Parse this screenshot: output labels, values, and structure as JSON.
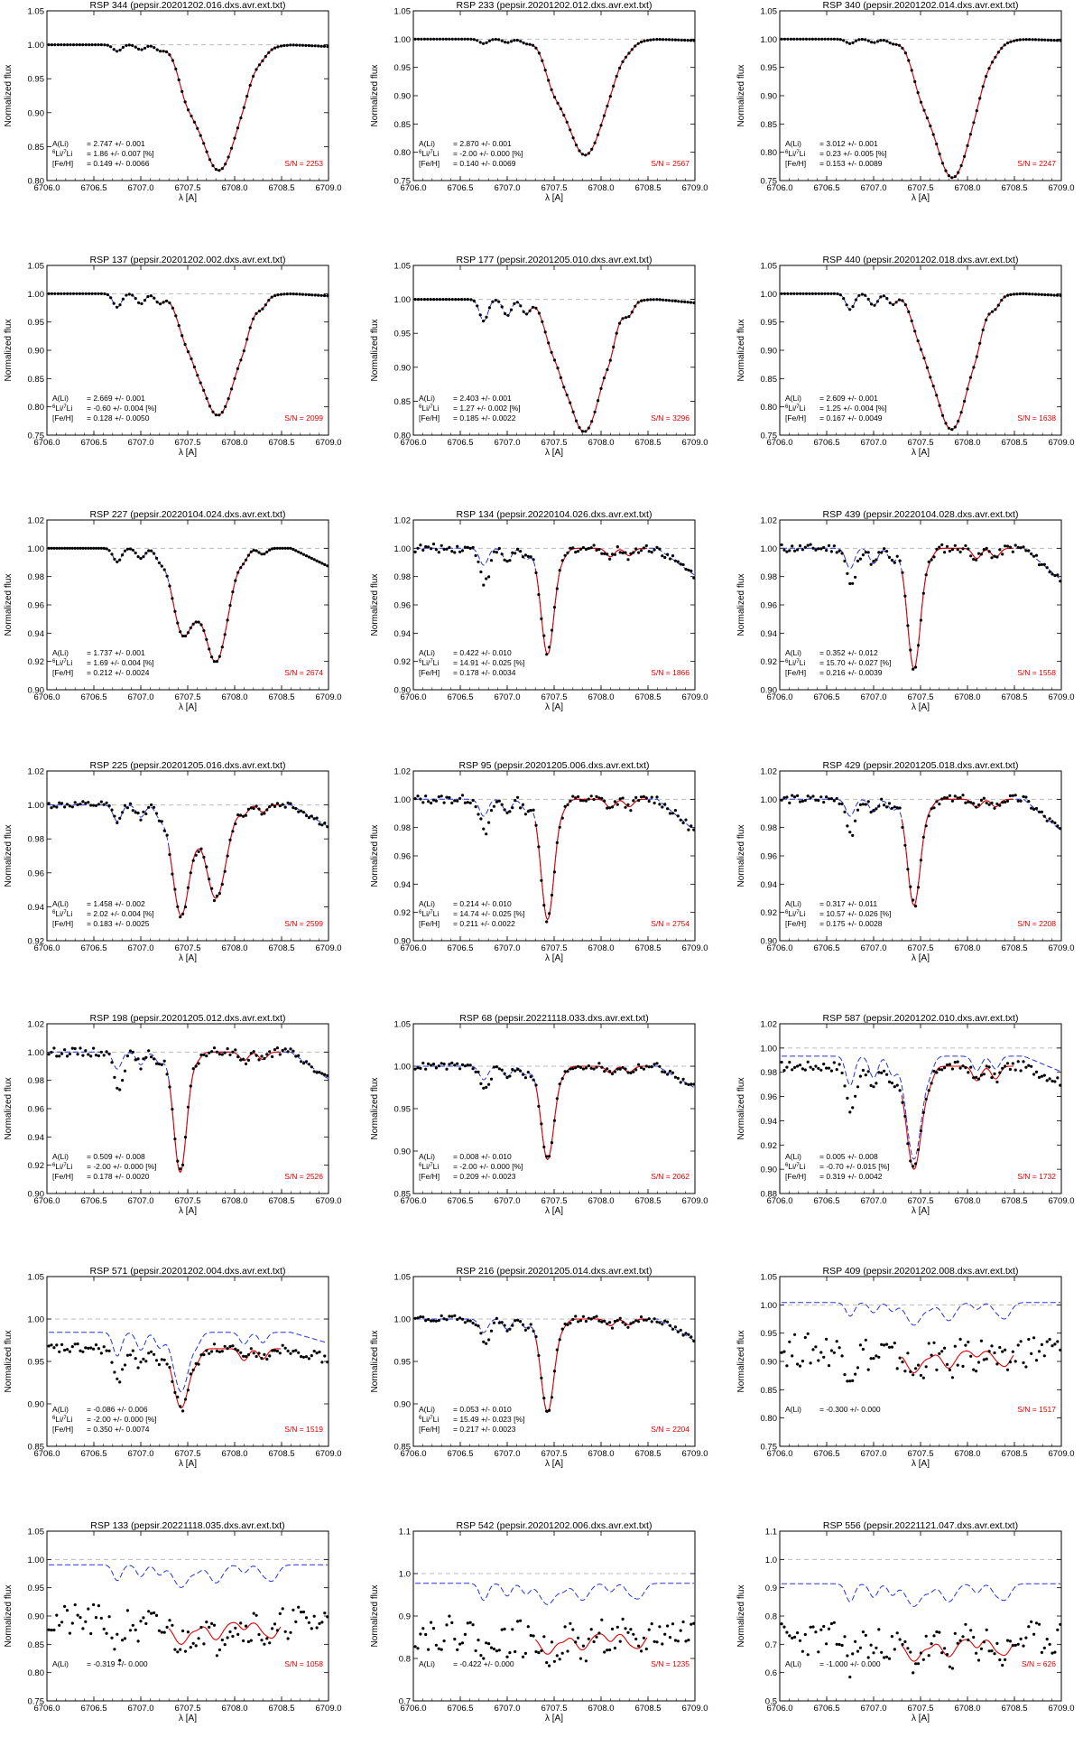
{
  "common": {
    "ylabel": "Normalized flux",
    "xlabel": "λ [A]",
    "xlim": [
      6706.0,
      6709.0
    ],
    "xticks": [
      6706.0,
      6706.5,
      6707.0,
      6707.5,
      6708.0,
      6708.5,
      6709.0
    ],
    "xtick_labels": [
      "6706.0",
      "6706.5",
      "6707.0",
      "6707.5",
      "6708.0",
      "6708.5",
      "6709.0"
    ],
    "colors": {
      "observed": "#000000",
      "fit": "#e00000",
      "synthetic": "#2233dd",
      "continuum": "#bbbbbb",
      "sn_text": "#e00000"
    },
    "label_alim": "A(Li)",
    "label_iso_sup": "6",
    "label_iso_mid": "Li/",
    "label_iso_sup2": "7",
    "label_iso_end": "Li",
    "label_feh": "[Fe/H]",
    "sn_prefix": "S/N ="
  },
  "chart_data": [
    {
      "type": "line",
      "title": "RSP 344 (pepsir.20201202.016.dxs.avr.ext.txt)",
      "ylim": [
        0.8,
        1.05
      ],
      "yticks": [
        0.8,
        0.85,
        0.9,
        0.95,
        1.0,
        1.05
      ],
      "ytick_labels": [
        "0.80",
        "0.85",
        "0.90",
        "0.95",
        "1.00",
        "1.05"
      ],
      "ALi": "= 2.747 +/- 0.001",
      "iso": "= 1.86 +/- 0.007 [%]",
      "feh": "= 0.149 +/- 0.0066",
      "sn": "2253",
      "profile": {
        "kind": "single",
        "depth": 0.185,
        "center": 6707.83,
        "width": 0.22,
        "noise": 0.0,
        "slope": -0.004,
        "blend": 0.012
      }
    },
    {
      "type": "line",
      "title": "RSP 233 (pepsir.20201202.012.dxs.avr.ext.txt)",
      "ylim": [
        0.75,
        1.05
      ],
      "yticks": [
        0.75,
        0.8,
        0.85,
        0.9,
        0.95,
        1.0,
        1.05
      ],
      "ytick_labels": [
        "0.75",
        "0.80",
        "0.85",
        "0.90",
        "0.95",
        "1.00",
        "1.05"
      ],
      "ALi": "= 2.870 +/- 0.001",
      "iso": "= -2.00 +/- 0.000 [%]",
      "feh": "= 0.140 +/- 0.0069",
      "sn": "2567",
      "profile": {
        "kind": "single",
        "depth": 0.205,
        "center": 6707.83,
        "width": 0.22,
        "noise": 0.0,
        "slope": -0.004,
        "blend": 0.01
      }
    },
    {
      "type": "line",
      "title": "RSP 340 (pepsir.20201202.014.dxs.avr.ext.txt)",
      "ylim": [
        0.75,
        1.05
      ],
      "yticks": [
        0.75,
        0.8,
        0.85,
        0.9,
        0.95,
        1.0,
        1.05
      ],
      "ytick_labels": [
        "0.75",
        "0.80",
        "0.85",
        "0.90",
        "0.95",
        "1.00",
        "1.05"
      ],
      "ALi": "= 3.012 +/- 0.001",
      "iso": "= 0.23 +/- 0.005 [%]",
      "feh": "= 0.153 +/- 0.0089",
      "sn": "2247",
      "profile": {
        "kind": "single",
        "depth": 0.245,
        "center": 6707.84,
        "width": 0.22,
        "noise": 0.0,
        "slope": -0.004,
        "blend": 0.01
      }
    },
    {
      "type": "line",
      "title": "RSP 137 (pepsir.20201202.002.dxs.avr.ext.txt)",
      "ylim": [
        0.75,
        1.05
      ],
      "yticks": [
        0.75,
        0.8,
        0.85,
        0.9,
        0.95,
        1.0,
        1.05
      ],
      "ytick_labels": [
        "0.75",
        "0.80",
        "0.85",
        "0.90",
        "0.95",
        "1.00",
        "1.05"
      ],
      "ALi": "= 2.669 +/- 0.001",
      "iso": "= -0.60 +/- 0.004 [%]",
      "feh": "= 0.128 +/- 0.0050",
      "sn": "2099",
      "profile": {
        "kind": "single",
        "depth": 0.215,
        "center": 6707.82,
        "width": 0.21,
        "noise": 0.0,
        "slope": -0.006,
        "blend": 0.03
      }
    },
    {
      "type": "line",
      "title": "RSP 177 (pepsir.20201205.010.dxs.avr.ext.txt)",
      "ylim": [
        0.8,
        1.05
      ],
      "yticks": [
        0.8,
        0.85,
        0.9,
        0.95,
        1.0,
        1.05
      ],
      "ytick_labels": [
        "0.80",
        "0.85",
        "0.90",
        "0.95",
        "1.00",
        "1.05"
      ],
      "ALi": "= 2.403 +/- 0.001",
      "iso": "= 1.27 +/- 0.002 [%]",
      "feh": "= 0.185 +/- 0.0022",
      "sn": "3296",
      "profile": {
        "kind": "single",
        "depth": 0.195,
        "center": 6707.82,
        "width": 0.2,
        "noise": 0.0,
        "slope": -0.008,
        "blend": 0.04
      }
    },
    {
      "type": "line",
      "title": "RSP 440 (pepsir.20201202.018.dxs.avr.ext.txt)",
      "ylim": [
        0.75,
        1.05
      ],
      "yticks": [
        0.75,
        0.8,
        0.85,
        0.9,
        0.95,
        1.0,
        1.05
      ],
      "ytick_labels": [
        "0.75",
        "0.80",
        "0.85",
        "0.90",
        "0.95",
        "1.00",
        "1.05"
      ],
      "ALi": "= 2.609 +/- 0.001",
      "iso": "= 1.25 +/- 0.004 [%]",
      "feh": "= 0.167 +/- 0.0049",
      "sn": "1638",
      "profile": {
        "kind": "single",
        "depth": 0.24,
        "center": 6707.83,
        "width": 0.2,
        "noise": 0.0,
        "slope": -0.005,
        "blend": 0.035
      }
    },
    {
      "type": "line",
      "title": "RSP 227 (pepsir.20220104.024.dxs.avr.ext.txt)",
      "ylim": [
        0.9,
        1.02
      ],
      "yticks": [
        0.9,
        0.92,
        0.94,
        0.96,
        0.98,
        1.0,
        1.02
      ],
      "ytick_labels": [
        "0.90",
        "0.92",
        "0.94",
        "0.96",
        "0.98",
        "1.00",
        "1.02"
      ],
      "ALi": "= 1.737 +/- 0.001",
      "iso": "= 1.69 +/- 0.004 [%]",
      "feh": "= 0.212 +/- 0.0024",
      "sn": "2674",
      "profile": {
        "kind": "double",
        "depth": 0.08,
        "depth2": 0.06,
        "center": 6707.8,
        "center2": 6707.45,
        "width": 0.13,
        "noise": 0.0,
        "slope": -0.02,
        "blend": 0.012
      }
    },
    {
      "type": "line",
      "title": "RSP 134 (pepsir.20220104.026.dxs.avr.ext.txt)",
      "ylim": [
        0.9,
        1.02
      ],
      "yticks": [
        0.9,
        0.92,
        0.94,
        0.96,
        0.98,
        1.0,
        1.02
      ],
      "ytick_labels": [
        "0.90",
        "0.92",
        "0.94",
        "0.96",
        "0.98",
        "1.00",
        "1.02"
      ],
      "ALi": "= 0.422 +/- 0.010",
      "iso": "= 14.91 +/- 0.025 [%]",
      "feh": "= 0.178 +/- 0.0034",
      "sn": "1866",
      "profile": {
        "kind": "fe",
        "depth": 0.075,
        "center": 6707.43,
        "width": 0.07,
        "noise": 0.003,
        "slope": -0.03,
        "blend": 0.015
      }
    },
    {
      "type": "line",
      "title": "RSP 439 (pepsir.20220104.028.dxs.avr.ext.txt)",
      "ylim": [
        0.9,
        1.02
      ],
      "yticks": [
        0.9,
        0.92,
        0.94,
        0.96,
        0.98,
        1.0,
        1.02
      ],
      "ytick_labels": [
        "0.90",
        "0.92",
        "0.94",
        "0.96",
        "0.98",
        "1.00",
        "1.02"
      ],
      "ALi": "= 0.352 +/- 0.012",
      "iso": "= 15.70 +/- 0.027 [%]",
      "feh": "= 0.216 +/- 0.0039",
      "sn": "1558",
      "profile": {
        "kind": "fe",
        "depth": 0.085,
        "center": 6707.43,
        "width": 0.07,
        "noise": 0.003,
        "slope": -0.035,
        "blend": 0.018
      }
    },
    {
      "type": "line",
      "title": "RSP 225 (pepsir.20201205.016.dxs.avr.ext.txt)",
      "ylim": [
        0.92,
        1.02
      ],
      "yticks": [
        0.92,
        0.94,
        0.96,
        0.98,
        1.0,
        1.02
      ],
      "ytick_labels": [
        "0.92",
        "0.94",
        "0.96",
        "0.98",
        "1.00",
        "1.02"
      ],
      "ALi": "= 1.458 +/- 0.002",
      "iso": "= 2.02 +/- 0.004 [%]",
      "feh": "= 0.183 +/- 0.0025",
      "sn": "2599",
      "profile": {
        "kind": "double",
        "depth": 0.055,
        "depth2": 0.065,
        "center": 6707.8,
        "center2": 6707.43,
        "width": 0.11,
        "noise": 0.002,
        "slope": -0.02,
        "blend": 0.012
      }
    },
    {
      "type": "line",
      "title": "RSP  95 (pepsir.20201205.006.dxs.avr.ext.txt)",
      "ylim": [
        0.9,
        1.02
      ],
      "yticks": [
        0.9,
        0.92,
        0.94,
        0.96,
        0.98,
        1.0,
        1.02
      ],
      "ytick_labels": [
        "0.90",
        "0.92",
        "0.94",
        "0.96",
        "0.98",
        "1.00",
        "1.02"
      ],
      "ALi": "= 0.214 +/- 0.010",
      "iso": "= 14.74 +/- 0.025 [%]",
      "feh": "= 0.211 +/- 0.0022",
      "sn": "2754",
      "profile": {
        "kind": "fe",
        "depth": 0.085,
        "center": 6707.43,
        "width": 0.07,
        "noise": 0.003,
        "slope": -0.035,
        "blend": 0.015
      }
    },
    {
      "type": "line",
      "title": "RSP 429 (pepsir.20201205.018.dxs.avr.ext.txt)",
      "ylim": [
        0.9,
        1.02
      ],
      "yticks": [
        0.9,
        0.92,
        0.94,
        0.96,
        0.98,
        1.0,
        1.02
      ],
      "ytick_labels": [
        "0.90",
        "0.92",
        "0.94",
        "0.96",
        "0.98",
        "1.00",
        "1.02"
      ],
      "ALi": "= 0.317 +/- 0.011",
      "iso": "= 10.57 +/- 0.026 [%]",
      "feh": "= 0.175 +/- 0.0028",
      "sn": "2208",
      "profile": {
        "kind": "fe",
        "depth": 0.075,
        "center": 6707.43,
        "width": 0.07,
        "noise": 0.003,
        "slope": -0.035,
        "blend": 0.015
      }
    },
    {
      "type": "line",
      "title": "RSP 198 (pepsir.20201205.012.dxs.avr.ext.txt)",
      "ylim": [
        0.9,
        1.02
      ],
      "yticks": [
        0.9,
        0.92,
        0.94,
        0.96,
        0.98,
        1.0,
        1.02
      ],
      "ytick_labels": [
        "0.90",
        "0.92",
        "0.94",
        "0.96",
        "0.98",
        "1.00",
        "1.02"
      ],
      "ALi": "= 0.509 +/- 0.008",
      "iso": "= -2.00 +/- 0.000 [%]",
      "feh": "= 0.178 +/- 0.0020",
      "sn": "2526",
      "profile": {
        "kind": "fe",
        "depth": 0.085,
        "center": 6707.42,
        "width": 0.07,
        "noise": 0.003,
        "slope": -0.03,
        "blend": 0.015
      }
    },
    {
      "type": "line",
      "title": "RSP  68 (pepsir.20221118.033.dxs.avr.ext.txt)",
      "ylim": [
        0.85,
        1.05
      ],
      "yticks": [
        0.85,
        0.9,
        0.95,
        1.0,
        1.05
      ],
      "ytick_labels": [
        "0.85",
        "0.90",
        "0.95",
        "1.00",
        "1.05"
      ],
      "ALi": "= 0.008 +/- 0.010",
      "iso": "= -2.00 +/- 0.000 [%]",
      "feh": "= 0.209 +/- 0.0023",
      "sn": "2062",
      "profile": {
        "kind": "fe",
        "depth": 0.11,
        "center": 6707.43,
        "width": 0.07,
        "noise": 0.004,
        "slope": -0.04,
        "blend": 0.02
      }
    },
    {
      "type": "line",
      "title": "RSP 587 (pepsir.20201202.010.dxs.avr.ext.txt)",
      "ylim": [
        0.88,
        1.02
      ],
      "yticks": [
        0.88,
        0.9,
        0.92,
        0.94,
        0.96,
        0.98,
        1.0,
        1.02
      ],
      "ytick_labels": [
        "0.88",
        "0.90",
        "0.92",
        "0.94",
        "0.96",
        "0.98",
        "1.00",
        "1.02"
      ],
      "ALi": "= 0.005 +/- 0.008",
      "iso": "= -0.70 +/- 0.015 [%]",
      "feh": "= 0.319 +/- 0.0042",
      "sn": "1732",
      "profile": {
        "kind": "fe",
        "depth": 0.085,
        "center": 6707.43,
        "width": 0.08,
        "noise": 0.004,
        "slope": -0.02,
        "blend": 0.03,
        "offset": -0.015
      }
    },
    {
      "type": "line",
      "title": "RSP 571 (pepsir.20201202.004.dxs.avr.ext.txt)",
      "ylim": [
        0.85,
        1.05
      ],
      "yticks": [
        0.85,
        0.9,
        0.95,
        1.0,
        1.05
      ],
      "ytick_labels": [
        "0.85",
        "0.90",
        "0.95",
        "1.00",
        "1.05"
      ],
      "ALi": "= -0.086 +/- 0.006",
      "iso": "= -2.00 +/- 0.000 [%]",
      "feh": "= 0.350 +/- 0.0074",
      "sn": "1519",
      "profile": {
        "kind": "fe",
        "depth": 0.07,
        "center": 6707.43,
        "width": 0.08,
        "noise": 0.006,
        "slope": -0.02,
        "blend": 0.035,
        "offset": -0.035
      }
    },
    {
      "type": "line",
      "title": "RSP 216 (pepsir.20201205.014.dxs.avr.ext.txt)",
      "ylim": [
        0.85,
        1.05
      ],
      "yticks": [
        0.85,
        0.9,
        0.95,
        1.0,
        1.05
      ],
      "ytick_labels": [
        "0.85",
        "0.90",
        "0.95",
        "1.00",
        "1.05"
      ],
      "ALi": "= 0.053 +/- 0.010",
      "iso": "= 15.49 +/- 0.023 [%]",
      "feh": "= 0.217 +/- 0.0023",
      "sn": "2204",
      "profile": {
        "kind": "fe",
        "depth": 0.11,
        "center": 6707.43,
        "width": 0.07,
        "noise": 0.004,
        "slope": -0.04,
        "blend": 0.02
      }
    },
    {
      "type": "line",
      "title": "RSP 409 (pepsir.20201202.008.dxs.avr.ext.txt)",
      "ylim": [
        0.75,
        1.05
      ],
      "yticks": [
        0.75,
        0.8,
        0.85,
        0.9,
        0.95,
        1.0,
        1.05
      ],
      "ytick_labels": [
        "0.75",
        "0.80",
        "0.85",
        "0.90",
        "0.95",
        "1.00",
        "1.05"
      ],
      "ALi": "= -0.300 +/- 0.000",
      "iso": "",
      "feh": "",
      "sn": "1517",
      "profile": {
        "kind": "noisy",
        "depth": 0.04,
        "center": 6707.43,
        "width": 0.08,
        "noise": 0.03,
        "slope": 0.0,
        "blend": 0.03,
        "offset": -0.08
      }
    },
    {
      "type": "line",
      "title": "RSP 133 (pepsir.20221118.035.dxs.avr.ext.txt)",
      "ylim": [
        0.75,
        1.05
      ],
      "yticks": [
        0.75,
        0.8,
        0.85,
        0.9,
        0.95,
        1.0,
        1.05
      ],
      "ytick_labels": [
        "0.75",
        "0.80",
        "0.85",
        "0.90",
        "0.95",
        "1.00",
        "1.05"
      ],
      "ALi": "= -0.319 +/- 0.000",
      "iso": "",
      "feh": "",
      "sn": "1058",
      "profile": {
        "kind": "noisy",
        "depth": 0.04,
        "center": 6707.43,
        "width": 0.08,
        "noise": 0.03,
        "slope": 0.0,
        "blend": 0.035,
        "offset": -0.11
      }
    },
    {
      "type": "line",
      "title": "RSP 542 (pepsir.20201202.006.dxs.avr.ext.txt)",
      "ylim": [
        0.7,
        1.1
      ],
      "yticks": [
        0.7,
        0.8,
        0.9,
        1.0,
        1.1
      ],
      "ytick_labels": [
        "0.7",
        "0.8",
        "0.9",
        "1.0",
        "1.1"
      ],
      "ALi": "= -0.422 +/- 0.000",
      "iso": "",
      "feh": "",
      "sn": "1235",
      "profile": {
        "kind": "noisy",
        "depth": 0.05,
        "center": 6707.43,
        "width": 0.08,
        "noise": 0.04,
        "slope": 0.0,
        "blend": 0.05,
        "offset": -0.14
      }
    },
    {
      "type": "line",
      "title": "RSP 556 (pepsir.20221121.047.dxs.avr.ext.txt)",
      "ylim": [
        0.5,
        1.1
      ],
      "yticks": [
        0.5,
        0.6,
        0.7,
        0.8,
        0.9,
        1.0,
        1.1
      ],
      "ytick_labels": [
        "0.5",
        "0.6",
        "0.7",
        "0.8",
        "0.9",
        "1.0",
        "1.1"
      ],
      "ALi": "= -1.000 +/- 0.000",
      "iso": "",
      "feh": "",
      "sn": "626",
      "profile": {
        "kind": "noisy",
        "depth": 0.08,
        "center": 6707.43,
        "width": 0.08,
        "noise": 0.06,
        "slope": 0.0,
        "blend": 0.08,
        "offset": -0.28
      }
    }
  ]
}
